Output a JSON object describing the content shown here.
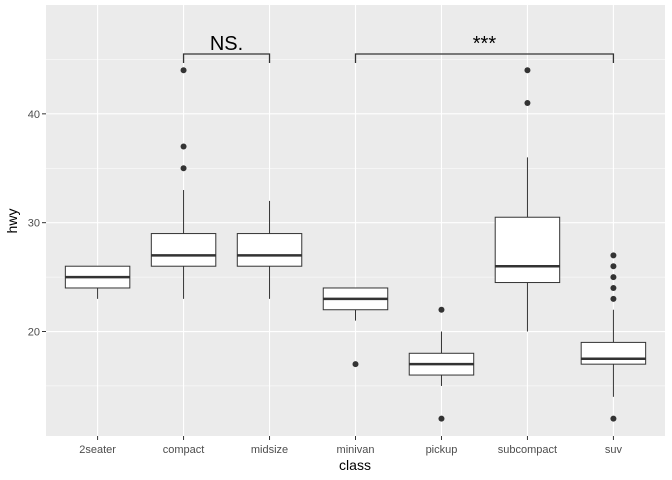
{
  "chart_data": {
    "type": "boxplot",
    "xlabel": "class",
    "ylabel": "hwy",
    "categories": [
      "2seater",
      "compact",
      "midsize",
      "minivan",
      "pickup",
      "subcompact",
      "suv"
    ],
    "ylim": [
      10.4,
      50
    ],
    "yticks": [
      20,
      30,
      40
    ],
    "grid": true,
    "boxes": [
      {
        "min": 23,
        "q1": 24,
        "median": 25,
        "q3": 26,
        "max": 26,
        "outliers": []
      },
      {
        "min": 23,
        "q1": 26,
        "median": 27,
        "q3": 29,
        "max": 33,
        "outliers": [
          35,
          37,
          44
        ]
      },
      {
        "min": 23,
        "q1": 26,
        "median": 27,
        "q3": 29,
        "max": 32,
        "outliers": []
      },
      {
        "min": 21,
        "q1": 22,
        "median": 23,
        "q3": 24,
        "max": 24,
        "outliers": [
          17
        ]
      },
      {
        "min": 15,
        "q1": 16,
        "median": 17,
        "q3": 18,
        "max": 20,
        "outliers": [
          12,
          22
        ]
      },
      {
        "min": 20,
        "q1": 24.5,
        "median": 26,
        "q3": 30.5,
        "max": 36,
        "outliers": [
          41,
          44
        ]
      },
      {
        "min": 14,
        "q1": 17,
        "median": 17.5,
        "q3": 19,
        "max": 22,
        "outliers": [
          12,
          23,
          24,
          25,
          26,
          27
        ]
      }
    ],
    "annotations": [
      {
        "from": "compact",
        "to": "midsize",
        "y": 45.5,
        "label": "NS."
      },
      {
        "from": "minivan",
        "to": "suv",
        "y": 45.5,
        "label": "***"
      }
    ]
  }
}
